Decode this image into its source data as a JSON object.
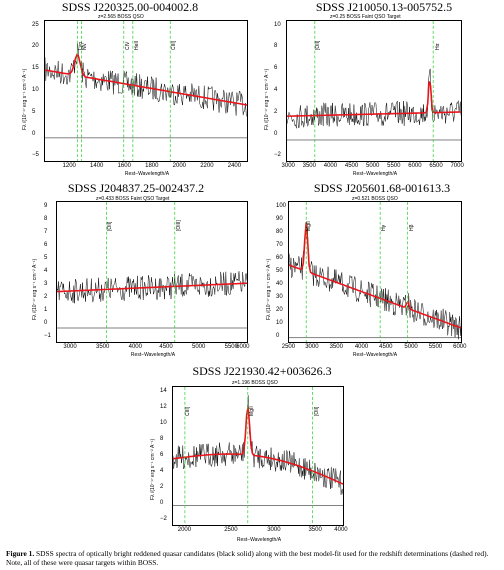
{
  "panels": [
    {
      "title": "SDSS J220325.00-004002.8",
      "subtitle": "z=2.565 BOSS QSO",
      "xlabel": "Rest−Wavelength/A",
      "ylabel": "Fλ /(10⁻¹⁷ erg s⁻¹ cm⁻² A⁻¹)",
      "xticks": [
        "1200",
        "1400",
        "1600",
        "1800",
        "2000",
        "2200",
        "2400"
      ],
      "yticks": [
        "25",
        "20",
        "15",
        "10",
        "5",
        "0",
        "−5"
      ],
      "lines": [
        "Lyα",
        "NV",
        "CIV",
        "HeII",
        "CIII]"
      ]
    },
    {
      "title": "SDSS J210050.13-005752.5",
      "subtitle": "z=0.25 BOSS Faint QSO Target",
      "xlabel": "Rest−Wavelength/A",
      "ylabel": "Fλ /(10⁻¹⁷ erg s⁻¹ cm⁻² A⁻¹)",
      "xticks": [
        "3000",
        "3500",
        "4000",
        "4500",
        "5000",
        "5500",
        "6000",
        "6500",
        "7000"
      ],
      "yticks": [
        "10",
        "8",
        "6",
        "4",
        "2",
        "0",
        "−2"
      ],
      "lines": [
        "[OII]",
        "Hα"
      ]
    },
    {
      "title": "SDSS J204837.25-002437.2",
      "subtitle": "z=0.433 BOSS Faint QSO Target",
      "xlabel": "Rest−Wavelength/A",
      "ylabel": "Fλ /(10⁻¹⁷ erg s⁻¹ cm⁻² A⁻¹)",
      "xticks": [
        "3000",
        "3500",
        "4000",
        "4500",
        "5000",
        "5500",
        "6000"
      ],
      "yticks": [
        "9",
        "8",
        "7",
        "6",
        "5",
        "4",
        "3",
        "2",
        "1",
        "0",
        "−1"
      ],
      "lines": [
        "[OII]",
        "[OIII]"
      ]
    },
    {
      "title": "SDSS J205601.68-001613.3",
      "subtitle": "z=0.521 BOSS QSO",
      "xlabel": "Rest−Wavelength/A",
      "ylabel": "Fλ /(10⁻¹⁷ erg s⁻¹ cm⁻² A⁻¹)",
      "xticks": [
        "2500",
        "3000",
        "3500",
        "4000",
        "4500",
        "5000",
        "5500",
        "6000"
      ],
      "yticks": [
        "100",
        "90",
        "80",
        "70",
        "60",
        "50",
        "40",
        "30",
        "20",
        "10",
        "0"
      ],
      "lines": [
        "MgII",
        "Hγ",
        "Hβ"
      ]
    },
    {
      "title": "SDSS J221930.42+003626.3",
      "subtitle": "z=1.196 BOSS QSO",
      "xlabel": "Rest−Wavelength/A",
      "ylabel": "Fλ /(10⁻¹⁷ erg s⁻¹ cm⁻² A⁻¹)",
      "xticks": [
        "2000",
        "2500",
        "3000",
        "3500",
        "4000"
      ],
      "yticks": [
        "14",
        "12",
        "10",
        "8",
        "6",
        "4",
        "2",
        "0",
        "−2"
      ],
      "lines": [
        "CIII]",
        "MgII",
        "[OII]"
      ]
    }
  ],
  "caption": {
    "label": "Figure 1.",
    "text": " SDSS spectra of optically bright reddened quasar candidates (black solid) along with the best model-fit used for the redshift determinations (dashed red). Note, all of these were quasar targets within BOSS."
  },
  "colors": {
    "spectrum": "#000000",
    "model": "#e8161c",
    "line_marker": "#22cc22"
  }
}
